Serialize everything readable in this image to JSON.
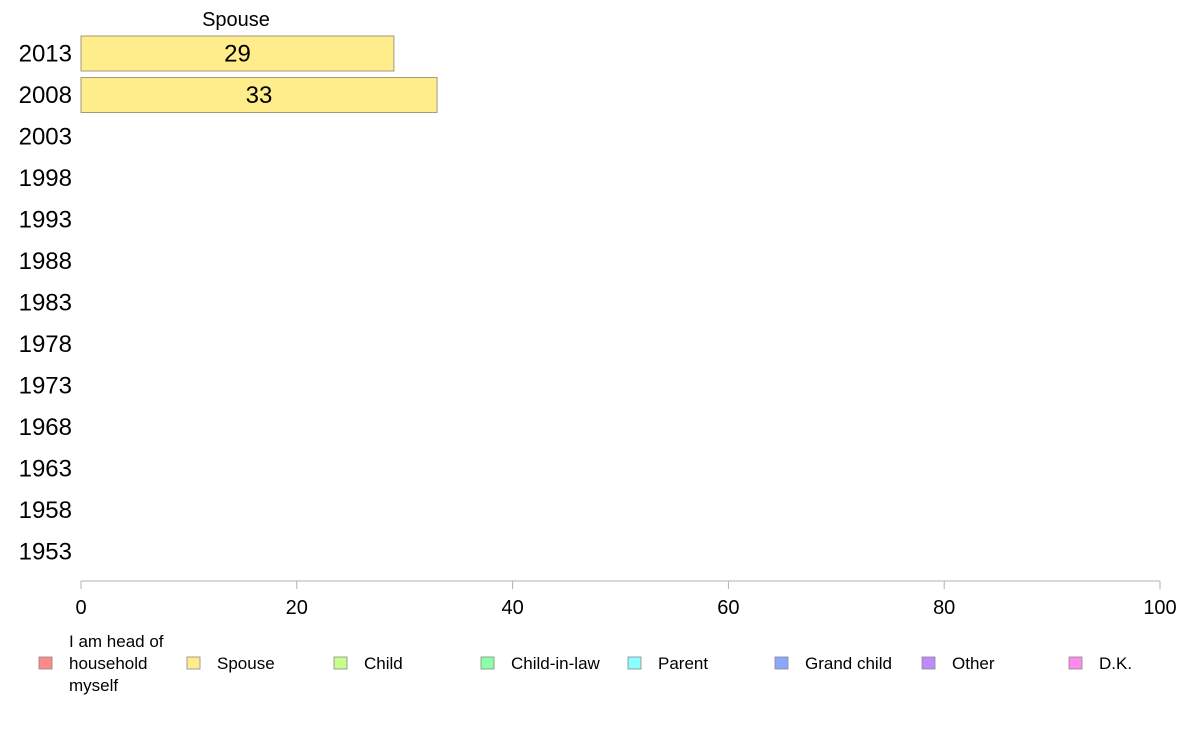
{
  "chart_data": {
    "type": "bar",
    "orientation": "horizontal",
    "stacked": true,
    "categories": [
      "2013",
      "2008",
      "2003",
      "1998",
      "1993",
      "1988",
      "1983",
      "1978",
      "1973",
      "1968",
      "1963",
      "1958",
      "1953"
    ],
    "header_label": "Spouse",
    "xlim": [
      0,
      100
    ],
    "xticks": [
      0,
      20,
      40,
      60,
      80,
      100
    ],
    "grid": false,
    "legend_position": "bottom",
    "series": [
      {
        "name": "I am head of household myself",
        "color": "#ff8a8a",
        "values": [
          null,
          null,
          null,
          null,
          null,
          null,
          null,
          null,
          null,
          null,
          null,
          null,
          null
        ]
      },
      {
        "name": "Spouse",
        "color": "#ffec8a",
        "values": [
          29,
          33,
          null,
          null,
          null,
          null,
          null,
          null,
          null,
          null,
          null,
          null,
          null
        ]
      },
      {
        "name": "Child",
        "color": "#c8ff8a",
        "values": [
          null,
          null,
          null,
          null,
          null,
          null,
          null,
          null,
          null,
          null,
          null,
          null,
          null
        ]
      },
      {
        "name": "Child-in-law",
        "color": "#8affa8",
        "values": [
          null,
          null,
          null,
          null,
          null,
          null,
          null,
          null,
          null,
          null,
          null,
          null,
          null
        ]
      },
      {
        "name": "Parent",
        "color": "#8affff",
        "values": [
          null,
          null,
          null,
          null,
          null,
          null,
          null,
          null,
          null,
          null,
          null,
          null,
          null
        ]
      },
      {
        "name": "Grand child",
        "color": "#8aa8ff",
        "values": [
          null,
          null,
          null,
          null,
          null,
          null,
          null,
          null,
          null,
          null,
          null,
          null,
          null
        ]
      },
      {
        "name": "Other",
        "color": "#c08aff",
        "values": [
          null,
          null,
          null,
          null,
          null,
          null,
          null,
          null,
          null,
          null,
          null,
          null,
          null
        ]
      },
      {
        "name": "D.K.",
        "color": "#ff8aec",
        "values": [
          null,
          null,
          null,
          null,
          null,
          null,
          null,
          null,
          null,
          null,
          null,
          null,
          null
        ]
      }
    ]
  }
}
